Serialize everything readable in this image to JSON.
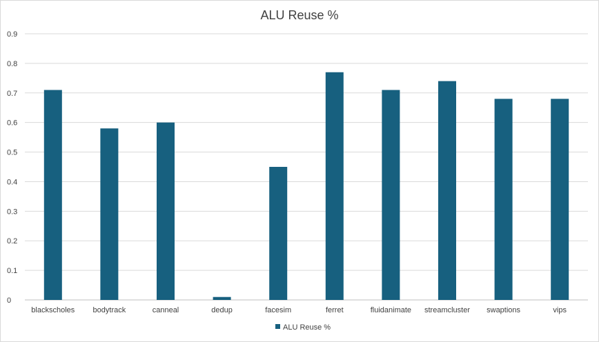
{
  "chart_data": {
    "type": "bar",
    "title": "ALU Reuse %",
    "xlabel": "",
    "ylabel": "",
    "categories": [
      "blackscholes",
      "bodytrack",
      "canneal",
      "dedup",
      "facesim",
      "ferret",
      "fluidanimate",
      "streamcluster",
      "swaptions",
      "vips"
    ],
    "series": [
      {
        "name": "ALU Reuse %",
        "values": [
          0.71,
          0.58,
          0.6,
          0.01,
          0.45,
          0.77,
          0.71,
          0.74,
          0.68,
          0.68
        ],
        "color": "#17607f"
      }
    ],
    "ylim": [
      0,
      0.9
    ],
    "yticks": [
      "0",
      "0.1",
      "0.2",
      "0.3",
      "0.4",
      "0.5",
      "0.6",
      "0.7",
      "0.8",
      "0.9"
    ],
    "grid": true,
    "legend": "bottom"
  },
  "colors": {
    "bar": "#17607f",
    "grid": "#d9d9d9",
    "text": "#404040"
  }
}
